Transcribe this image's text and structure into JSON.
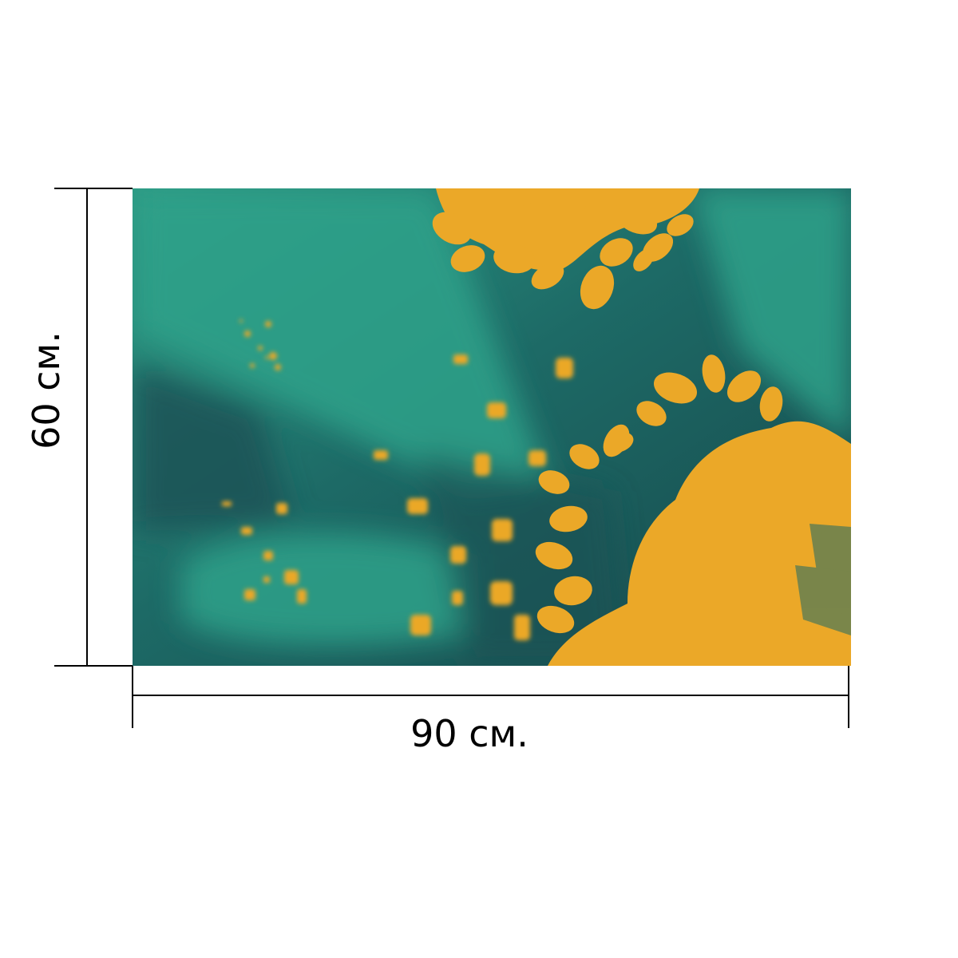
{
  "product": {
    "height_label": "60 см.",
    "width_label": "90 см.",
    "colors": {
      "teal_light": "#2e9a84",
      "teal_dark": "#17474a",
      "accent_orange": "#eba828",
      "dimension_lines": "#000000"
    },
    "artwork_description_icon": "autumn-leaves-icon"
  }
}
